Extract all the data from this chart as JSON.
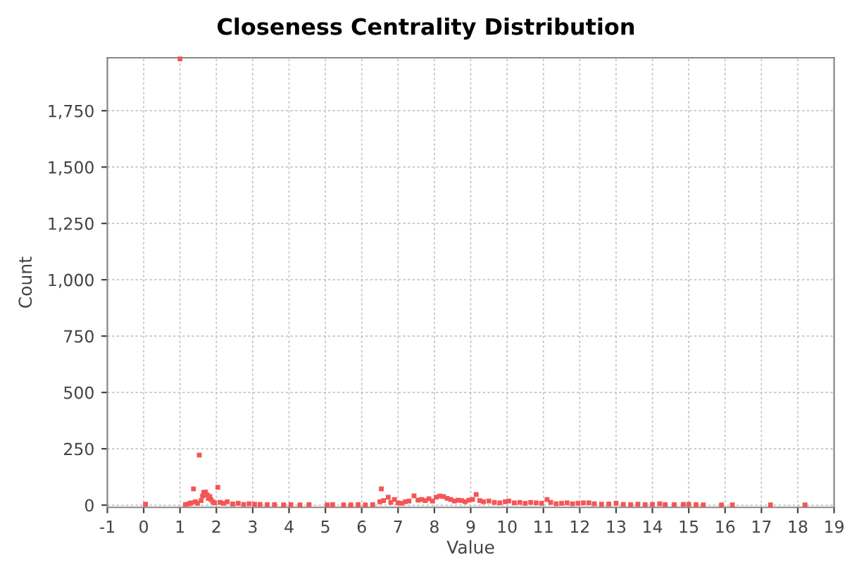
{
  "chart_data": {
    "type": "scatter",
    "title": "Closeness Centrality Distribution",
    "xlabel": "Value",
    "ylabel": "Count",
    "x": [
      0.05,
      1.0,
      1.15,
      1.25,
      1.3,
      1.37,
      1.42,
      1.48,
      1.53,
      1.58,
      1.62,
      1.65,
      1.7,
      1.75,
      1.78,
      1.82,
      1.85,
      1.9,
      1.95,
      2.04,
      2.1,
      2.2,
      2.3,
      2.45,
      2.6,
      2.75,
      2.9,
      3.05,
      3.2,
      3.4,
      3.6,
      3.85,
      4.05,
      4.3,
      4.55,
      5.05,
      5.2,
      5.5,
      5.7,
      5.9,
      6.1,
      6.3,
      6.5,
      6.54,
      6.6,
      6.73,
      6.8,
      6.9,
      7.0,
      7.1,
      7.2,
      7.3,
      7.44,
      7.55,
      7.65,
      7.75,
      7.85,
      7.95,
      8.05,
      8.15,
      8.25,
      8.35,
      8.45,
      8.55,
      8.65,
      8.75,
      8.85,
      8.95,
      9.05,
      9.15,
      9.25,
      9.35,
      9.5,
      9.65,
      9.8,
      9.95,
      10.05,
      10.2,
      10.35,
      10.5,
      10.65,
      10.8,
      10.95,
      11.1,
      11.2,
      11.35,
      11.5,
      11.65,
      11.8,
      11.95,
      12.1,
      12.25,
      12.4,
      12.6,
      12.8,
      13.0,
      13.2,
      13.4,
      13.6,
      13.8,
      14.0,
      14.2,
      14.35,
      14.6,
      14.85,
      15.0,
      15.2,
      15.4,
      15.9,
      16.2,
      17.25,
      18.2
    ],
    "values": [
      4,
      1980,
      3,
      6,
      10,
      72,
      15,
      8,
      222,
      20,
      40,
      56,
      58,
      45,
      30,
      38,
      25,
      15,
      10,
      79,
      12,
      8,
      15,
      5,
      8,
      3,
      6,
      4,
      3,
      2,
      2,
      1,
      2,
      1,
      2,
      1,
      2,
      1,
      1,
      2,
      1,
      2,
      15,
      72,
      20,
      35,
      12,
      25,
      10,
      8,
      15,
      18,
      41,
      22,
      25,
      20,
      28,
      18,
      35,
      40,
      38,
      30,
      25,
      18,
      22,
      20,
      15,
      22,
      25,
      47,
      20,
      15,
      18,
      12,
      10,
      15,
      18,
      10,
      12,
      8,
      12,
      10,
      8,
      25,
      12,
      6,
      8,
      10,
      6,
      8,
      10,
      10,
      6,
      4,
      5,
      8,
      3,
      2,
      4,
      2,
      3,
      6,
      2,
      2,
      3,
      4,
      2,
      1,
      1,
      1,
      1,
      1
    ],
    "color": "#f55555",
    "marker": "square",
    "xlim": [
      -1,
      19
    ],
    "ylim": [
      -10,
      1985
    ],
    "xticks": [
      -1,
      0,
      1,
      2,
      3,
      4,
      5,
      6,
      7,
      8,
      9,
      10,
      11,
      12,
      13,
      14,
      15,
      16,
      17,
      18,
      19
    ],
    "yticks": [
      0,
      250,
      500,
      750,
      {
        "value": 1000,
        "label": "1,000"
      },
      {
        "value": 1250,
        "label": "1,250"
      },
      {
        "value": 1500,
        "label": "1,500"
      },
      {
        "value": 1750,
        "label": "1,750"
      }
    ],
    "grid": true
  }
}
